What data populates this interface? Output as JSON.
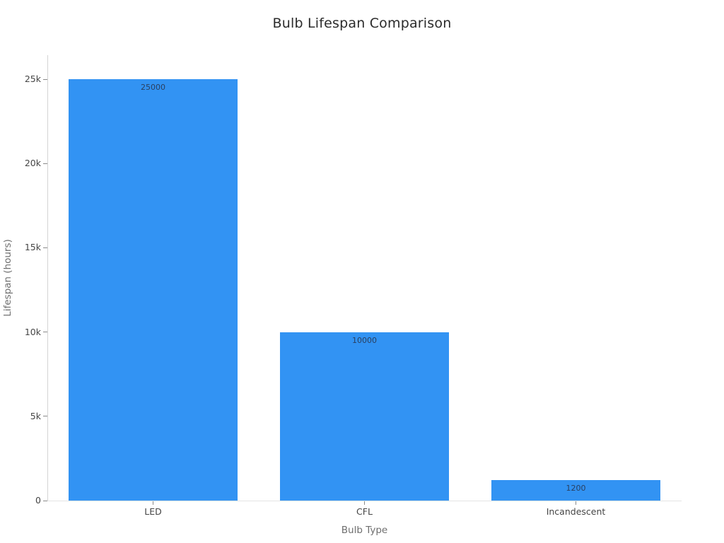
{
  "chart_data": {
    "type": "bar",
    "title": "Bulb Lifespan Comparison",
    "categories": [
      "LED",
      "CFL",
      "Incandescent"
    ],
    "values": [
      25000,
      10000,
      1200
    ],
    "bar_labels": [
      "25000",
      "10000",
      "1200"
    ],
    "xlabel": "Bulb Type",
    "ylabel": "Lifespan (hours)",
    "ylim": [
      0,
      25000
    ],
    "yticks": [
      0,
      5000,
      10000,
      15000,
      20000,
      25000
    ],
    "ytick_labels": [
      "0",
      "5k",
      "10k",
      "15k",
      "20k",
      "25k"
    ],
    "bar_color": "#3293f3",
    "bar_label_color": "#2a3f5f",
    "grid": false,
    "legend_position": "none"
  }
}
